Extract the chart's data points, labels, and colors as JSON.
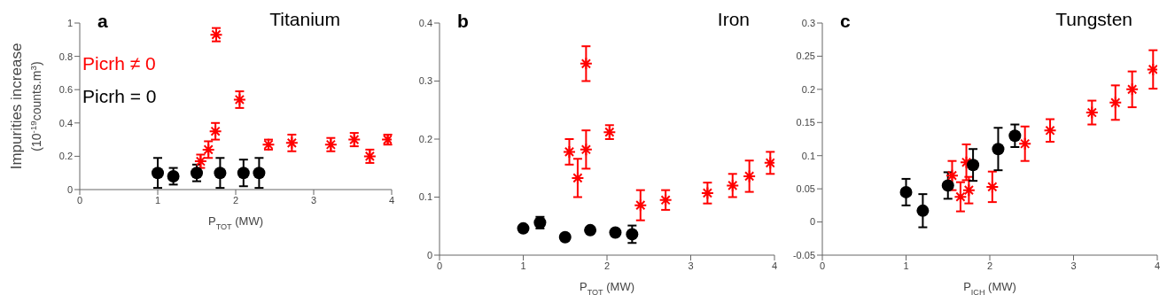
{
  "chart_data": [
    {
      "type": "scatter",
      "title": "Titanium",
      "annotations": [
        "a"
      ],
      "xlabel": "P$_{TOT}$ (MW)",
      "ylabel": "Impurities increase\n(10$^{-19}$counts.m$^{3}$)",
      "xlim": [
        0,
        4
      ],
      "xticks": [
        0,
        1,
        2,
        3,
        4
      ],
      "ylim": [
        0,
        1
      ],
      "yticks": [
        0,
        0.2,
        0.4,
        0.6,
        0.8,
        1
      ],
      "legend": "top left",
      "series": [
        {
          "name": "Picrh ≠ 0",
          "color": "#ff0000",
          "marker": "cross",
          "x": [
            1.55,
            1.65,
            1.74,
            1.75,
            2.05,
            2.42,
            2.72,
            3.22,
            3.52,
            3.72,
            3.95
          ],
          "values": [
            0.17,
            0.24,
            0.35,
            0.93,
            0.54,
            0.27,
            0.28,
            0.27,
            0.3,
            0.2,
            0.3
          ],
          "errors": [
            0.04,
            0.05,
            0.05,
            0.04,
            0.05,
            0.03,
            0.05,
            0.04,
            0.04,
            0.04,
            0.03
          ]
        },
        {
          "name": "Picrh = 0",
          "color": "#000000",
          "marker": "circle",
          "x": [
            1.0,
            1.2,
            1.5,
            1.8,
            2.1,
            2.3
          ],
          "values": [
            0.1,
            0.08,
            0.1,
            0.1,
            0.1,
            0.1
          ],
          "errors": [
            0.09,
            0.05,
            0.05,
            0.09,
            0.08,
            0.09
          ]
        }
      ]
    },
    {
      "type": "scatter",
      "title": "Iron",
      "annotations": [
        "b"
      ],
      "xlabel": "P$_{TOT}$ (MW)",
      "xlim": [
        0,
        4
      ],
      "xticks": [
        0,
        1,
        2,
        3,
        4
      ],
      "ylim": [
        0,
        0.4
      ],
      "yticks": [
        0,
        0.1,
        0.2,
        0.3,
        0.4
      ],
      "series": [
        {
          "color": "#ff0000",
          "marker": "cross",
          "x": [
            1.55,
            1.65,
            1.75,
            1.75,
            2.03,
            2.4,
            2.7,
            3.2,
            3.5,
            3.7,
            3.95
          ],
          "values": [
            0.178,
            0.133,
            0.182,
            0.33,
            0.212,
            0.086,
            0.095,
            0.107,
            0.12,
            0.136,
            0.159
          ],
          "errors": [
            0.022,
            0.033,
            0.033,
            0.03,
            0.012,
            0.026,
            0.017,
            0.018,
            0.02,
            0.027,
            0.019
          ]
        },
        {
          "color": "#000000",
          "marker": "circle",
          "x": [
            1.0,
            1.2,
            1.5,
            1.8,
            2.1,
            2.3
          ],
          "values": [
            0.046,
            0.056,
            0.031,
            0.043,
            0.039,
            0.036
          ],
          "errors": [
            0.005,
            0.01,
            0.005,
            0.005,
            0.005,
            0.015
          ]
        }
      ]
    },
    {
      "type": "scatter",
      "title": "Tungsten",
      "annotations": [
        "c"
      ],
      "xlabel": "P$_{ICH}$ (MW)",
      "xlim": [
        0,
        4
      ],
      "xticks": [
        0,
        1,
        2,
        3,
        4
      ],
      "ylim": [
        -0.05,
        0.3
      ],
      "yticks": [
        -0.05,
        0,
        0.05,
        0.1,
        0.15,
        0.2,
        0.25,
        0.3
      ],
      "series": [
        {
          "color": "#ff0000",
          "marker": "cross",
          "x": [
            1.55,
            1.65,
            1.72,
            1.75,
            2.03,
            2.42,
            2.72,
            3.22,
            3.5,
            3.7,
            3.95
          ],
          "values": [
            0.07,
            0.038,
            0.09,
            0.048,
            0.053,
            0.118,
            0.138,
            0.165,
            0.18,
            0.2,
            0.23
          ],
          "errors": [
            0.022,
            0.022,
            0.027,
            0.02,
            0.023,
            0.026,
            0.017,
            0.018,
            0.026,
            0.027,
            0.029
          ]
        },
        {
          "color": "#000000",
          "marker": "circle",
          "x": [
            1.0,
            1.2,
            1.5,
            1.8,
            2.1,
            2.3
          ],
          "values": [
            0.045,
            0.017,
            0.055,
            0.086,
            0.11,
            0.13
          ],
          "errors": [
            0.02,
            0.025,
            0.02,
            0.024,
            0.032,
            0.017
          ]
        }
      ]
    }
  ]
}
